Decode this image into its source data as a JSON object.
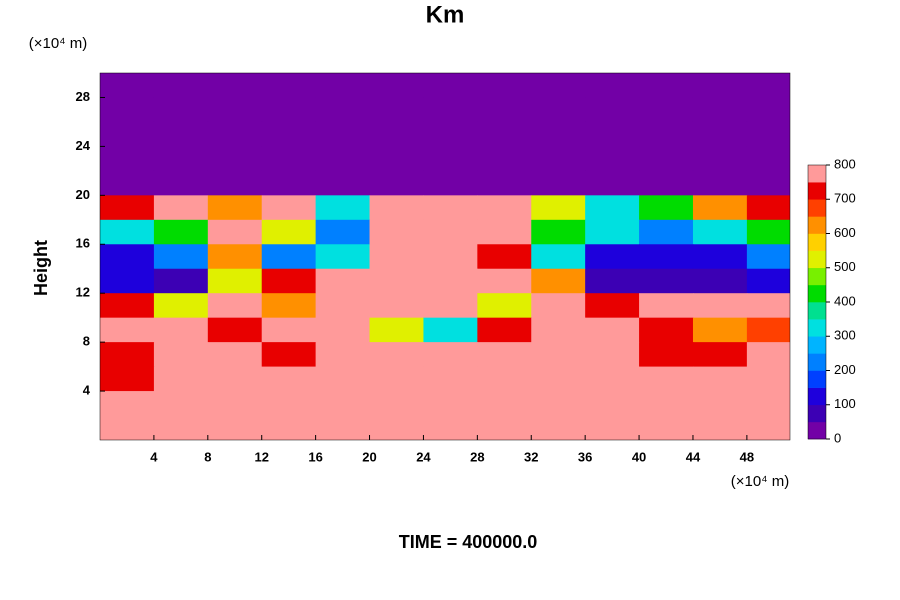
{
  "chart_data": {
    "type": "heatmap",
    "title": "Km",
    "ylabel": "Height",
    "y_unit": "(×10⁴ m)",
    "x_unit": "(×10⁴ m)",
    "footer": "TIME = 400000.0",
    "xlim": [
      0,
      51.2
    ],
    "ylim": [
      0,
      30
    ],
    "xticks": [
      4,
      8,
      12,
      16,
      20,
      24,
      28,
      32,
      36,
      40,
      44,
      48
    ],
    "yticks": [
      4,
      8,
      12,
      16,
      20,
      24,
      28
    ],
    "x": [
      2,
      6,
      10,
      14,
      18,
      22,
      26,
      30,
      34,
      38,
      42,
      46,
      50
    ],
    "y": [
      29,
      27,
      25,
      23,
      21,
      19,
      17,
      15,
      13,
      11,
      9,
      7,
      5,
      3,
      1
    ],
    "z": [
      [
        0,
        0,
        0,
        0,
        0,
        0,
        0,
        0,
        0,
        0,
        0,
        0,
        0
      ],
      [
        0,
        0,
        0,
        0,
        0,
        0,
        0,
        0,
        0,
        0,
        0,
        0,
        0
      ],
      [
        0,
        0,
        0,
        0,
        0,
        0,
        0,
        0,
        0,
        0,
        0,
        0,
        0
      ],
      [
        0,
        0,
        0,
        0,
        0,
        0,
        0,
        0,
        0,
        0,
        0,
        0,
        0
      ],
      [
        0,
        0,
        0,
        0,
        0,
        0,
        0,
        0,
        0,
        0,
        0,
        0,
        0
      ],
      [
        700,
        800,
        600,
        800,
        300,
        800,
        800,
        800,
        500,
        300,
        400,
        600,
        700
      ],
      [
        300,
        400,
        800,
        500,
        200,
        800,
        800,
        800,
        400,
        300,
        200,
        300,
        400
      ],
      [
        100,
        200,
        600,
        200,
        300,
        800,
        800,
        700,
        300,
        100,
        100,
        100,
        200
      ],
      [
        100,
        50,
        500,
        700,
        800,
        800,
        800,
        800,
        600,
        50,
        50,
        50,
        100
      ],
      [
        700,
        500,
        800,
        600,
        800,
        800,
        800,
        500,
        800,
        700,
        800,
        800,
        750
      ],
      [
        800,
        800,
        700,
        800,
        800,
        500,
        300,
        700,
        800,
        800,
        700,
        600,
        650
      ],
      [
        700,
        800,
        800,
        700,
        800,
        800,
        800,
        800,
        750,
        800,
        700,
        700,
        750
      ],
      [
        700,
        800,
        800,
        800,
        800,
        800,
        800,
        800,
        800,
        800,
        800,
        800,
        750
      ],
      [
        750,
        800,
        800,
        800,
        800,
        800,
        800,
        800,
        800,
        800,
        750,
        800,
        800
      ],
      [
        800,
        800,
        800,
        800,
        800,
        800,
        800,
        800,
        800,
        800,
        800,
        800,
        800
      ]
    ],
    "levels": [
      0,
      50,
      100,
      150,
      200,
      250,
      300,
      350,
      400,
      450,
      500,
      550,
      600,
      650,
      700,
      750,
      800
    ],
    "colors": [
      "#7200a6",
      "#3c00b4",
      "#1e00dc",
      "#0040ff",
      "#0080ff",
      "#00b4ff",
      "#00e0e0",
      "#00e090",
      "#00dc00",
      "#78f000",
      "#e0f000",
      "#ffd000",
      "#ff9000",
      "#ff4000",
      "#e80000",
      "#ff9a9a"
    ],
    "cbar_ticks": [
      0,
      100,
      200,
      300,
      400,
      500,
      600,
      700,
      800
    ]
  }
}
